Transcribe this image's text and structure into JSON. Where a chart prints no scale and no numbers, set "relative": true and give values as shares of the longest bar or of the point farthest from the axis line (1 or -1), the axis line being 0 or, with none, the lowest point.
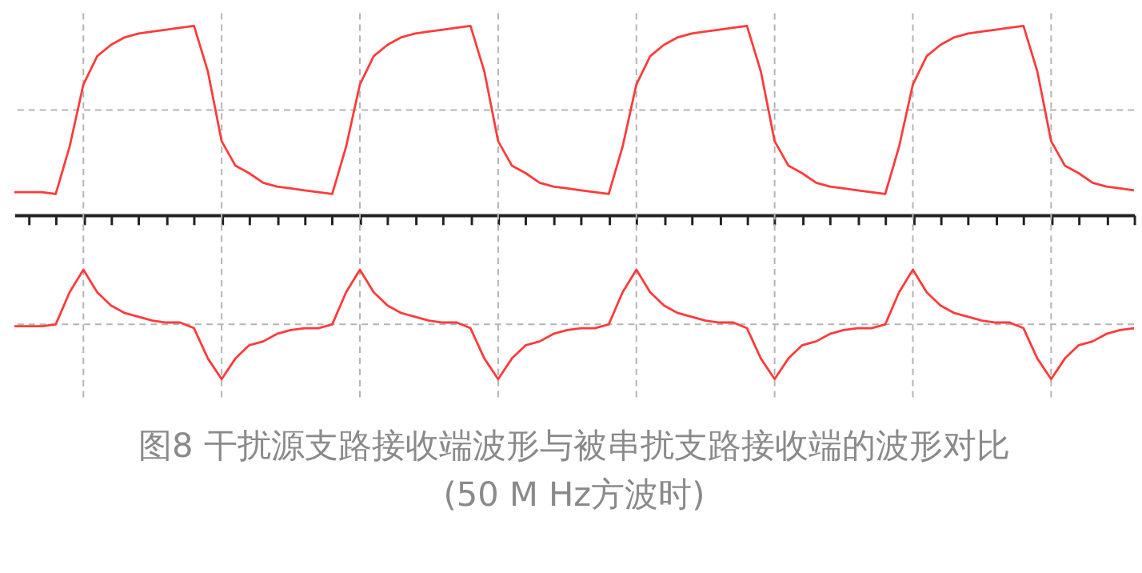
{
  "chart_data": {
    "type": "line",
    "relative": true,
    "grid": true,
    "title": "图8 干扰源支路接收端波形与被串扰支路接收端的波形对比",
    "subtitle": "(50 M Hz方波时)",
    "categories": [
      null,
      null,
      null,
      null,
      null,
      null,
      null,
      null,
      null,
      null,
      null,
      null,
      null,
      null,
      null,
      null,
      null,
      null,
      null,
      null,
      null,
      null,
      null,
      null,
      null,
      null,
      null,
      null,
      null,
      null,
      null,
      null,
      null,
      null,
      null,
      null,
      null,
      null,
      null,
      null,
      null,
      null,
      null,
      null,
      null,
      null,
      null,
      null,
      null,
      null,
      null,
      null,
      null,
      null,
      null,
      null,
      null,
      null,
      null,
      null,
      null,
      null,
      null,
      null,
      null,
      null,
      null,
      null,
      null,
      null,
      null,
      null,
      null,
      null,
      null,
      null,
      null,
      null,
      null,
      null,
      null,
      null
    ],
    "series": [
      {
        "color": "#ff3b3b",
        "values": [
          0.12,
          0.12,
          0.12,
          0.11,
          0.36,
          0.69,
          0.84,
          0.9,
          0.94,
          0.96,
          0.97,
          0.98,
          0.99,
          1.0,
          0.76,
          0.39,
          0.26,
          0.22,
          0.17,
          0.15,
          0.14,
          0.13,
          0.12,
          0.11,
          0.36,
          0.69,
          0.84,
          0.9,
          0.94,
          0.96,
          0.97,
          0.98,
          0.99,
          1.0,
          0.76,
          0.39,
          0.26,
          0.22,
          0.17,
          0.15,
          0.14,
          0.13,
          0.12,
          0.11,
          0.36,
          0.69,
          0.84,
          0.9,
          0.94,
          0.96,
          0.97,
          0.98,
          0.99,
          1.0,
          0.76,
          0.39,
          0.26,
          0.22,
          0.17,
          0.15,
          0.14,
          0.13,
          0.12,
          0.11,
          0.36,
          0.69,
          0.84,
          0.9,
          0.94,
          0.96,
          0.97,
          0.98,
          0.99,
          1.0,
          0.76,
          0.39,
          0.26,
          0.22,
          0.17,
          0.15,
          0.14,
          0.13
        ]
      },
      {
        "color": "#ff3b3b",
        "values": [
          -0.59,
          -0.59,
          -0.59,
          -0.58,
          -0.41,
          -0.29,
          -0.41,
          -0.48,
          -0.52,
          -0.54,
          -0.56,
          -0.57,
          -0.57,
          -0.6,
          -0.76,
          -0.87,
          -0.76,
          -0.69,
          -0.67,
          -0.63,
          -0.61,
          -0.6,
          -0.6,
          -0.58,
          -0.41,
          -0.29,
          -0.41,
          -0.48,
          -0.52,
          -0.54,
          -0.56,
          -0.57,
          -0.57,
          -0.6,
          -0.76,
          -0.87,
          -0.76,
          -0.69,
          -0.67,
          -0.63,
          -0.61,
          -0.6,
          -0.6,
          -0.58,
          -0.41,
          -0.29,
          -0.41,
          -0.48,
          -0.52,
          -0.54,
          -0.56,
          -0.57,
          -0.57,
          -0.6,
          -0.76,
          -0.87,
          -0.76,
          -0.69,
          -0.67,
          -0.63,
          -0.61,
          -0.6,
          -0.6,
          -0.58,
          -0.41,
          -0.29,
          -0.41,
          -0.48,
          -0.52,
          -0.54,
          -0.56,
          -0.57,
          -0.57,
          -0.6,
          -0.76,
          -0.87,
          -0.76,
          -0.69,
          -0.67,
          -0.63,
          -0.61,
          -0.6
        ]
      }
    ]
  }
}
